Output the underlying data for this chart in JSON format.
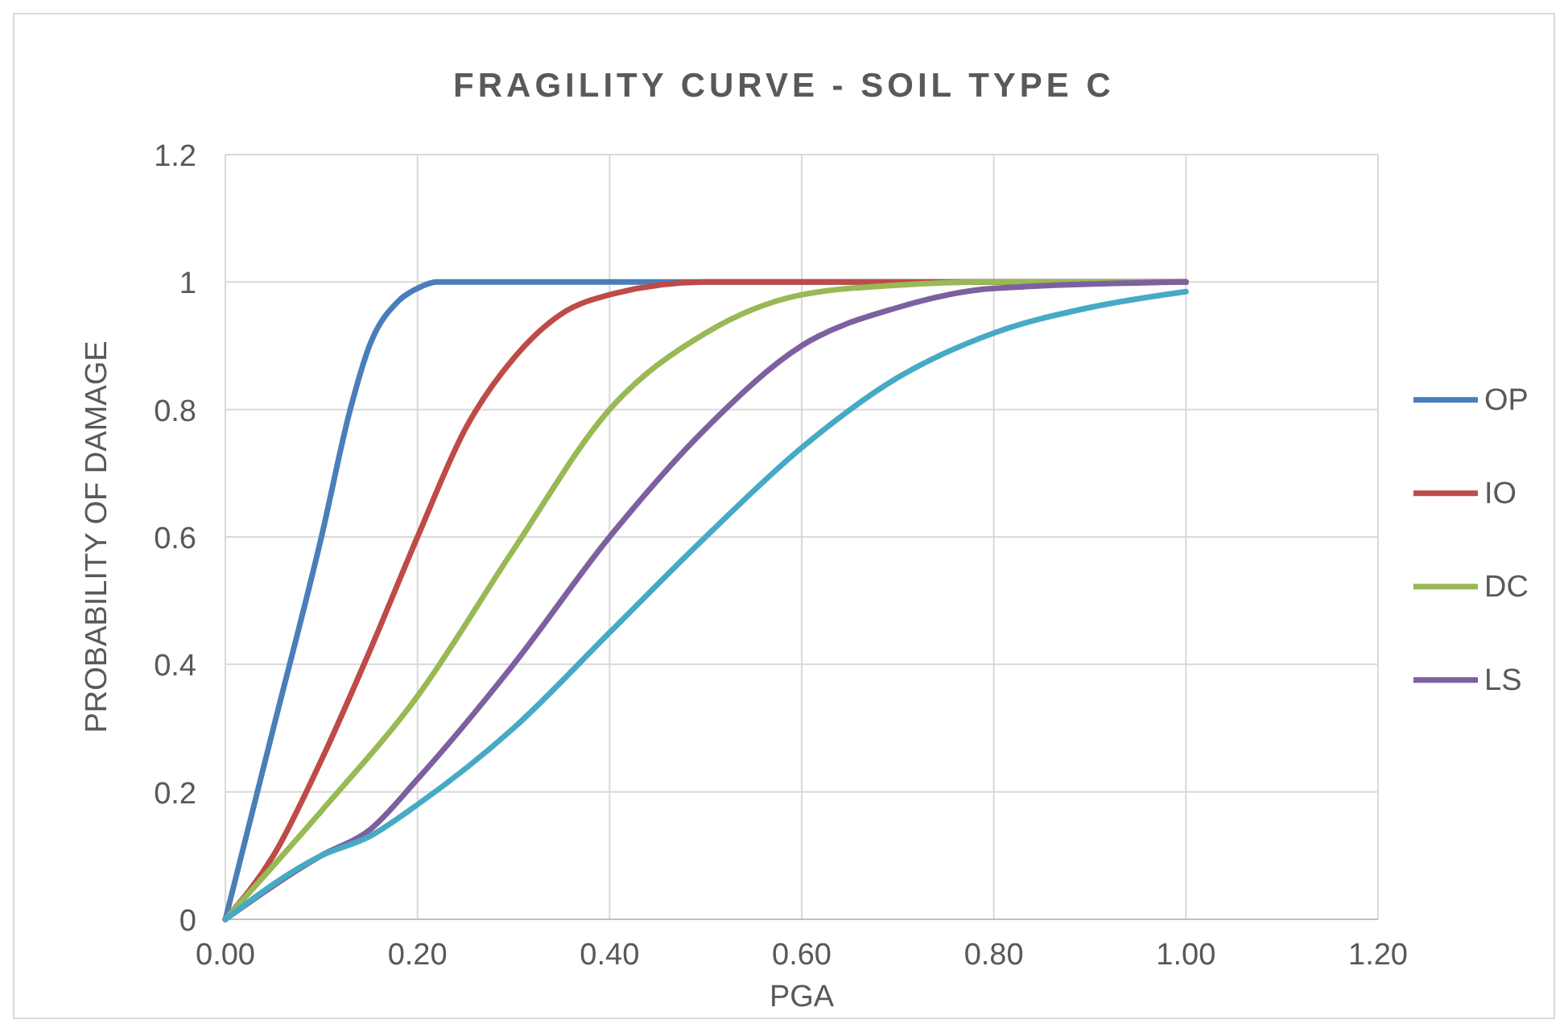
{
  "chart_data": {
    "type": "line",
    "title": "FRAGILITY CURVE - SOIL TYPE C",
    "xlabel": "PGA",
    "ylabel": "PROBABILITY OF DAMAGE",
    "xlim": [
      0,
      1.2
    ],
    "xticks": [
      {
        "value": 0,
        "label": "0.00"
      },
      {
        "value": 0.2,
        "label": "0.20"
      },
      {
        "value": 0.4,
        "label": "0.40"
      },
      {
        "value": 0.6,
        "label": "0.60"
      },
      {
        "value": 0.8,
        "label": "0.80"
      },
      {
        "value": 1,
        "label": "1.00"
      },
      {
        "value": 1.2,
        "label": "1.20"
      }
    ],
    "ylim": [
      0,
      1.2
    ],
    "yticks": [
      0,
      0.2,
      0.4,
      0.6,
      0.8,
      1,
      1.2
    ],
    "grid": true,
    "legend": "right",
    "line_style": "solid",
    "series": [
      {
        "name": "OP",
        "color": "#4a7ebb",
        "x": [
          0,
          0.05,
          0.1,
          0.13,
          0.15,
          0.18,
          0.2,
          0.22,
          0.3,
          1
        ],
        "values": [
          0,
          0.3,
          0.6,
          0.8,
          0.9,
          0.97,
          0.99,
          1,
          1,
          1
        ]
      },
      {
        "name": "IO",
        "color": "#be4b48",
        "x": [
          0,
          0.05,
          0.1,
          0.15,
          0.2,
          0.25,
          0.3,
          0.35,
          0.4,
          0.5,
          1
        ],
        "values": [
          0,
          0.1,
          0.25,
          0.42,
          0.6,
          0.77,
          0.88,
          0.95,
          0.98,
          1,
          1
        ]
      },
      {
        "name": "DC",
        "color": "#98b954",
        "x": [
          0,
          0.1,
          0.2,
          0.3,
          0.4,
          0.5,
          0.6,
          0.7,
          0.8,
          1
        ],
        "values": [
          0,
          0.17,
          0.35,
          0.58,
          0.8,
          0.92,
          0.98,
          0.995,
          1,
          1
        ]
      },
      {
        "name": "LS",
        "color": "#7d60a0",
        "x": [
          0,
          0.1,
          0.15,
          0.2,
          0.3,
          0.4,
          0.5,
          0.6,
          0.7,
          0.8,
          1
        ],
        "values": [
          0,
          0.1,
          0.14,
          0.22,
          0.4,
          0.6,
          0.77,
          0.9,
          0.96,
          0.99,
          1
        ]
      },
      {
        "color": "#46aac5",
        "x": [
          0,
          0.1,
          0.15,
          0.2,
          0.3,
          0.4,
          0.5,
          0.6,
          0.7,
          0.8,
          0.9,
          1
        ],
        "values": [
          0,
          0.1,
          0.13,
          0.18,
          0.3,
          0.45,
          0.6,
          0.74,
          0.85,
          0.92,
          0.96,
          0.985
        ]
      }
    ]
  }
}
